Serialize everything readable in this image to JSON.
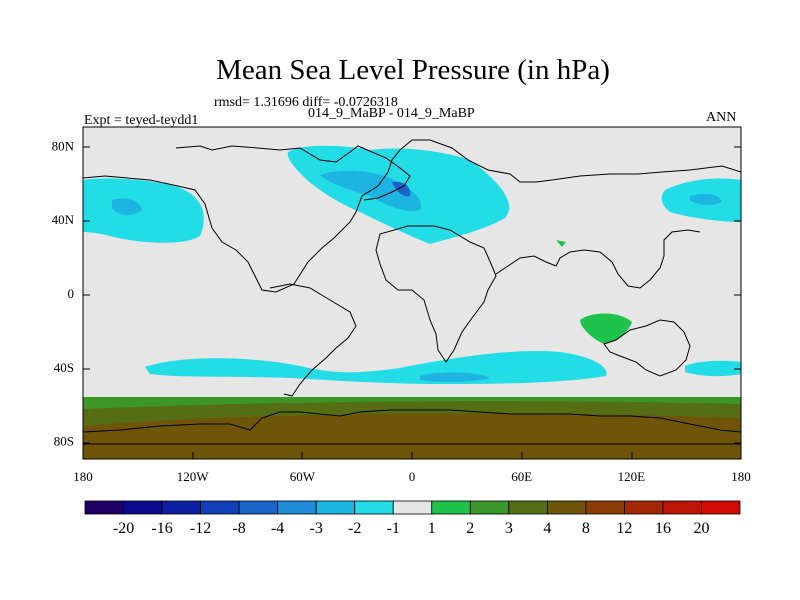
{
  "title": "Mean Sea Level Pressure (in hPa)",
  "subtitle_rmsd": "rmsd= 1.31696 diff= -0.0726318",
  "subtitle_runs": "014_9_MaBP - 014_9_MaBP",
  "left_label": "Expt = teyed-teydd1",
  "right_label": "ANN",
  "chart_data": {
    "type": "heatmap",
    "variable": "Mean Sea Level Pressure difference",
    "units": "hPa",
    "projection": "cylindrical equidistant",
    "x_range_deg": [
      -180,
      180
    ],
    "y_range_deg": [
      -90,
      90
    ],
    "x_ticks": [
      {
        "value": -180,
        "label": "180"
      },
      {
        "value": -120,
        "label": "120W"
      },
      {
        "value": -60,
        "label": "60W"
      },
      {
        "value": 0,
        "label": "0"
      },
      {
        "value": 60,
        "label": "60E"
      },
      {
        "value": 120,
        "label": "120E"
      },
      {
        "value": 180,
        "label": "180"
      }
    ],
    "y_ticks": [
      {
        "value": 80,
        "label": "80N"
      },
      {
        "value": 40,
        "label": "40N"
      },
      {
        "value": 0,
        "label": "0"
      },
      {
        "value": -40,
        "label": "40S"
      },
      {
        "value": -80,
        "label": "80S"
      }
    ],
    "colorbar": {
      "colors": [
        "#1e0066",
        "#0a0a8c",
        "#0d1fa3",
        "#1040b8",
        "#1a64c8",
        "#1e8cd6",
        "#1eb4e1",
        "#22dce6",
        "#e6e6e6",
        "#1fc34b",
        "#3c9628",
        "#556e14",
        "#6e550a",
        "#8c3c05",
        "#a52805",
        "#be1405",
        "#d20a05"
      ],
      "labels": [
        "-20",
        "-16",
        "-12",
        "-8",
        "-4",
        "-3",
        "-2",
        "-1",
        "1",
        "2",
        "3",
        "4",
        "8",
        "12",
        "16",
        "20"
      ]
    },
    "features": [
      {
        "description": "southern high latitude positive band",
        "value_range_hPa": [
          2,
          8
        ],
        "lat_range": [
          -90,
          -63
        ]
      },
      {
        "description": "southern mid-latitude negative band",
        "value_range_hPa": [
          -3,
          -1
        ],
        "lat_range": [
          -48,
          -38
        ]
      },
      {
        "description": "North Atlantic negative anomaly",
        "value_range_hPa": [
          -4,
          -1
        ],
        "lat_range": [
          28,
          82
        ]
      },
      {
        "description": "North Pacific negative anomaly",
        "value_range_hPa": [
          -3,
          -1
        ],
        "lat_range": [
          33,
          62
        ]
      },
      {
        "description": "Indian Ocean positive spot",
        "value_range_hPa": [
          1,
          2
        ],
        "lat_range": [
          -26,
          -12
        ]
      }
    ]
  }
}
